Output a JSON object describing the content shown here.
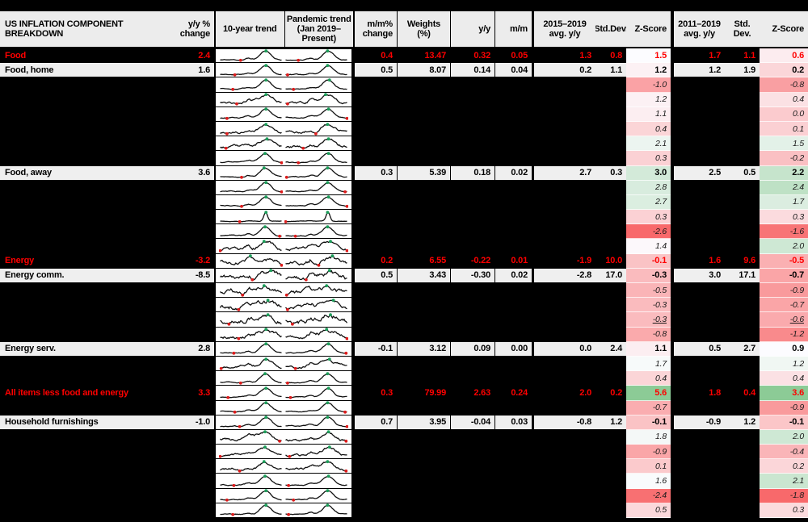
{
  "title": "US INFLATION COMPONENT BREAKDOWN",
  "header": {
    "yy_change": "y/y %\nchange",
    "trend_10yr": "10-year trend",
    "trend_pandemic": "Pandemic trend\n(Jan 2019–Present)",
    "mm_change": "m/m%\nchange",
    "weights": "Weights\n(%)",
    "yy": "y/y",
    "mm": "m/m",
    "avg_2015_2019": "2015–2019\navg. y/y",
    "stddev_1": "Std.Dev.",
    "zscore_1": "Z-Score",
    "avg_2011_2019": "2011–2019\navg. y/y",
    "stddev_2": "Std. Dev.",
    "zscore_2": "Z-Score"
  },
  "colors": {
    "page_bg": "#000000",
    "header_bg": "#ececec",
    "row_bg": "#efefef",
    "highlight_text": "#ff0000",
    "spark_line": "#111111",
    "spark_max_marker": "#1c9e5a",
    "spark_min_marker": "#dd1c1c",
    "z_scale_min": "#F8696B",
    "z_scale_mid": "#FCFCFF",
    "z_scale_max": "#8CCB96"
  },
  "z_scales": {
    "col1": {
      "min": -2.6,
      "mid": 1.5,
      "max": 5.6
    },
    "col2": {
      "min": -1.8,
      "mid": 0.9,
      "max": 3.6
    }
  },
  "chart_data": {
    "type": "table",
    "columns": [
      "label",
      "y/y % change",
      "10-year trend",
      "Pandemic trend (Jan 2019–Present)",
      "m/m% change",
      "Weights (%)",
      "y/y",
      "m/m",
      "2015–2019 avg. y/y",
      "Std.Dev.",
      "Z-Score",
      "2011–2019 avg. y/y",
      "Std. Dev.",
      "Z-Score"
    ],
    "rows": [
      {
        "label": "Food",
        "style": "highlight",
        "spark": "hump",
        "yy_change": "2.4",
        "mm_change": "0.4",
        "weights": "13.47",
        "yy": "0.32",
        "mm": "0.05",
        "avg1": "1.3",
        "std1": "0.8",
        "z1": "1.5",
        "avg2": "1.7",
        "std2": "1.1",
        "z2": "0.6"
      },
      {
        "label": "Food, home",
        "style": "normal",
        "spark": "hump",
        "yy_change": "1.6",
        "mm_change": "0.5",
        "weights": "8.07",
        "yy": "0.14",
        "mm": "0.04",
        "avg1": "0.2",
        "std1": "1.1",
        "z1": "1.2",
        "avg2": "1.2",
        "std2": "1.9",
        "z2": "0.2"
      },
      {
        "label": "",
        "style": "hidden",
        "spark": "hump",
        "z1": "-1.0",
        "z2": "-0.8"
      },
      {
        "label": "",
        "style": "hidden",
        "spark": "wavy",
        "z1": "1.2",
        "z2": "0.4"
      },
      {
        "label": "",
        "style": "hidden",
        "spark": "hump",
        "z1": "1.1",
        "z2": "0.0"
      },
      {
        "label": "",
        "style": "hidden",
        "spark": "wavy",
        "z1": "0.4",
        "z2": "0.1"
      },
      {
        "label": "",
        "style": "hidden",
        "spark": "wavy",
        "z1": "2.1",
        "z2": "1.5"
      },
      {
        "label": "",
        "style": "hidden",
        "spark": "hump",
        "z1": "0.3",
        "z2": "-0.2"
      },
      {
        "label": "Food, away",
        "style": "normal",
        "spark": "hump",
        "yy_change": "3.6",
        "mm_change": "0.3",
        "weights": "5.39",
        "yy": "0.18",
        "mm": "0.02",
        "avg1": "2.7",
        "std1": "0.3",
        "z1": "3.0",
        "avg2": "2.5",
        "std2": "0.5",
        "z2": "2.2"
      },
      {
        "label": "",
        "style": "hidden",
        "spark": "hump",
        "z1": "2.8",
        "z2": "2.4"
      },
      {
        "label": "",
        "style": "hidden",
        "spark": "hump",
        "z1": "2.7",
        "z2": "1.7"
      },
      {
        "label": "",
        "style": "hidden",
        "spark": "spike",
        "z1": "0.3",
        "z2": "0.3"
      },
      {
        "label": "",
        "style": "hidden",
        "spark": "hump",
        "z1": "-2.6",
        "z2": "-1.6"
      },
      {
        "label": "",
        "style": "hidden",
        "spark": "wavy",
        "z1": "1.4",
        "z2": "2.0"
      },
      {
        "label": "Energy",
        "style": "highlight",
        "spark": "volatile",
        "yy_change": "-3.2",
        "mm_change": "0.2",
        "weights": "6.55",
        "yy": "-0.22",
        "mm": "0.01",
        "avg1": "-1.9",
        "std1": "10.0",
        "z1": "-0.1",
        "avg2": "1.6",
        "std2": "9.6",
        "z2": "-0.5"
      },
      {
        "label": "Energy comm.",
        "style": "normal",
        "spark": "volatile",
        "yy_change": "-8.5",
        "mm_change": "0.5",
        "weights": "3.43",
        "yy": "-0.30",
        "mm": "0.02",
        "avg1": "-2.8",
        "std1": "17.0",
        "z1": "-0.3",
        "avg2": "3.0",
        "std2": "17.1",
        "z2": "-0.7"
      },
      {
        "label": "",
        "style": "hidden",
        "spark": "volatile",
        "z1": "-0.5",
        "z2": "-0.9"
      },
      {
        "label": "",
        "style": "hidden",
        "spark": "volatile",
        "z1": "-0.3",
        "z2": "-0.7"
      },
      {
        "label": "",
        "style": "hidden",
        "spark": "volatile",
        "underline": true,
        "z1": "-0.3",
        "z2": "-0.6"
      },
      {
        "label": "",
        "style": "hidden",
        "spark": "volatile",
        "z1": "-0.8",
        "z2": "-1.2"
      },
      {
        "label": "Energy serv.",
        "style": "normal",
        "spark": "hump",
        "yy_change": "2.8",
        "mm_change": "-0.1",
        "weights": "3.12",
        "yy": "0.09",
        "mm": "0.00",
        "avg1": "0.0",
        "std1": "2.4",
        "z1": "1.1",
        "avg2": "0.5",
        "std2": "2.7",
        "z2": "0.9"
      },
      {
        "label": "",
        "style": "hidden",
        "spark": "wavy",
        "z1": "1.7",
        "z2": "1.2"
      },
      {
        "label": "",
        "style": "hidden",
        "spark": "hump",
        "z1": "0.4",
        "z2": "0.4"
      },
      {
        "label": "All items less food and energy",
        "style": "highlight",
        "spark": "hump",
        "yy_change": "3.3",
        "mm_change": "0.3",
        "weights": "79.99",
        "yy": "2.63",
        "mm": "0.24",
        "avg1": "2.0",
        "std1": "0.2",
        "z1": "5.6",
        "avg2": "1.8",
        "std2": "0.4",
        "z2": "3.6"
      },
      {
        "label": "",
        "style": "hidden",
        "spark": "hump",
        "z1": "-0.7",
        "z2": "-0.9"
      },
      {
        "label": "Household furnishings",
        "style": "normal",
        "spark": "hump",
        "yy_change": "-1.0",
        "mm_change": "0.7",
        "weights": "3.95",
        "yy": "-0.04",
        "mm": "0.03",
        "avg1": "-0.8",
        "std1": "1.2",
        "z1": "-0.1",
        "avg2": "-0.9",
        "std2": "1.2",
        "z2": "-0.1"
      },
      {
        "label": "",
        "style": "hidden",
        "spark": "wavy",
        "z1": "1.8",
        "z2": "2.0"
      },
      {
        "label": "",
        "style": "hidden",
        "spark": "wavy",
        "z1": "-0.9",
        "z2": "-0.4"
      },
      {
        "label": "",
        "style": "hidden",
        "spark": "wavy",
        "z1": "0.1",
        "z2": "0.2"
      },
      {
        "label": "",
        "style": "hidden",
        "spark": "hump",
        "z1": "1.6",
        "z2": "2.1"
      },
      {
        "label": "",
        "style": "hidden",
        "spark": "hump",
        "z1": "-2.4",
        "z2": "-1.8"
      },
      {
        "label": "",
        "style": "hidden",
        "spark": "hump",
        "z1": "0.5",
        "z2": "0.3"
      }
    ]
  }
}
